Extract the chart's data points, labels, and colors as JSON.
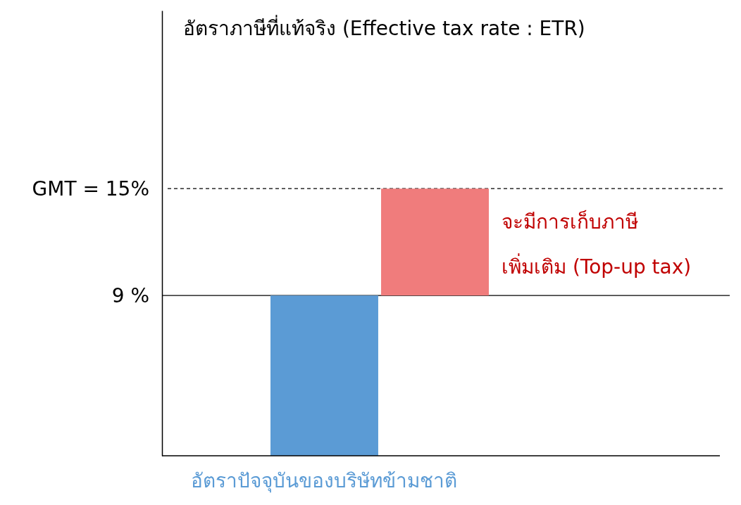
{
  "chart_data": {
    "type": "bar",
    "title": "อัตราภาษีที่แท้จริง (Effective tax rate : ETR)",
    "categories": [
      "อัตราปัจจุบันของบริษัทข้ามชาติ",
      null
    ],
    "values": [
      9,
      6
    ],
    "base": [
      0,
      9
    ],
    "colors": [
      "#5b9bd5",
      "#f07c7c"
    ],
    "ylim": [
      0,
      25
    ],
    "yticks": [
      {
        "value": 9,
        "label": "9 %"
      },
      {
        "value": 15,
        "label": "GMT = 15%"
      }
    ],
    "ref_lines": [
      {
        "axis": "y",
        "value": 15,
        "line_style": "dashed",
        "color": "#000000"
      },
      {
        "axis": "y",
        "value": 9,
        "line_style": "solid",
        "color": "#000000"
      }
    ],
    "annotations": [
      "จะมีการเก็บภาษี\nเพิ่มเติม (Top-up tax)"
    ],
    "grid": false
  }
}
